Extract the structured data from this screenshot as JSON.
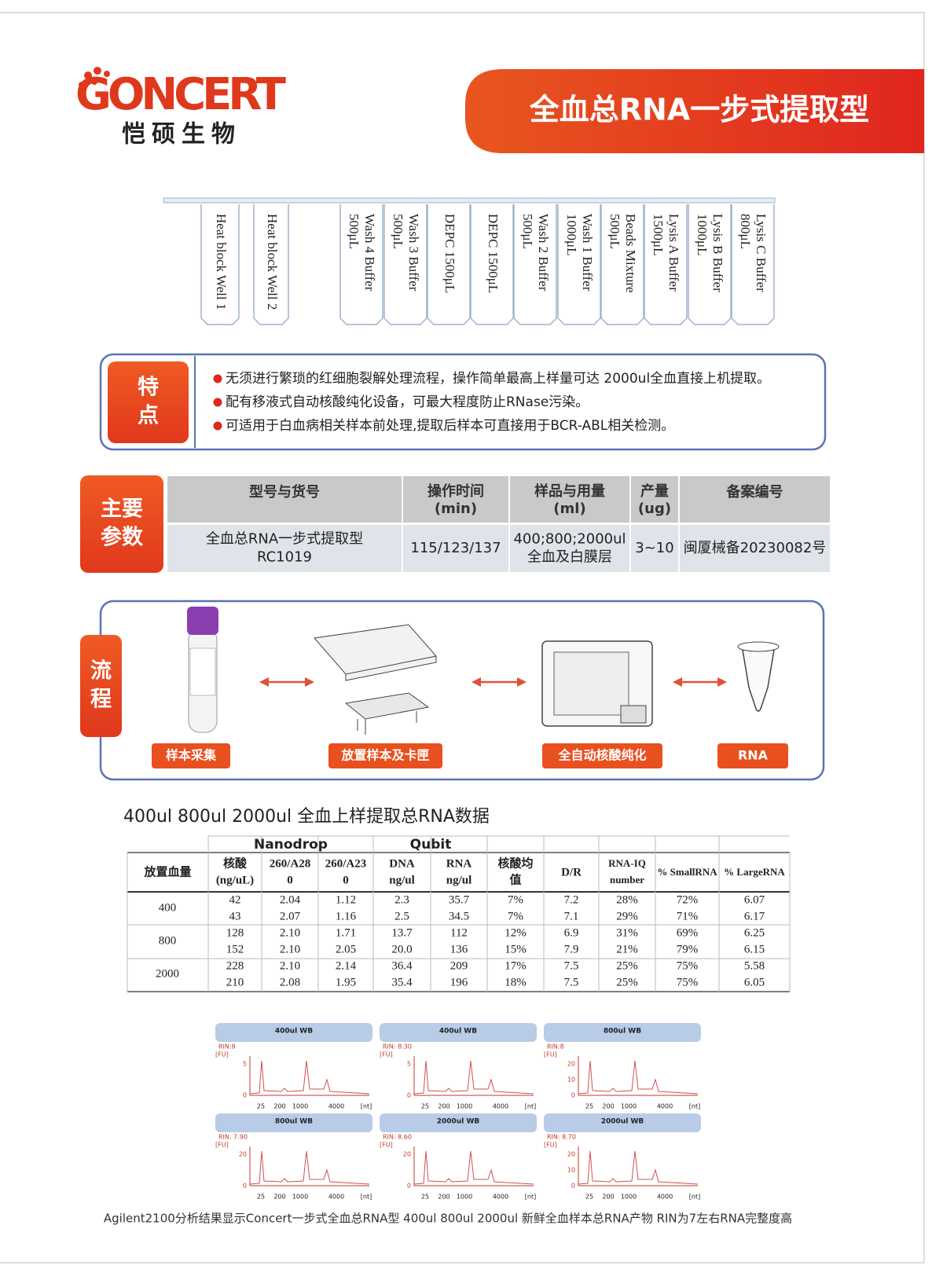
{
  "header": {
    "brand": "GONCERT",
    "brand_cn": "恺硕生物",
    "title": "全血总RNA一步式提取型"
  },
  "cartridge": {
    "wells": [
      [
        "Heat block Well 1"
      ],
      [
        "Heat block Well 2"
      ],
      [
        "Wash 4 Buffer",
        "500μL"
      ],
      [
        "Wash 3 Buffer",
        "500μL"
      ],
      [
        "DEPC 1500μL"
      ],
      [
        "DEPC 1500μL"
      ],
      [
        "Wash 2 Buffer",
        "500μL"
      ],
      [
        "Wash 1 Buffer",
        "1000μL"
      ],
      [
        "Beads Mixture",
        "500μL"
      ],
      [
        "Lysis A Buffer",
        "1500μL"
      ],
      [
        "Lysis B Buffer",
        "1000μL"
      ],
      [
        "Lysis C Buffer",
        "800μL"
      ]
    ]
  },
  "features": {
    "label": [
      "特",
      "点"
    ],
    "items": [
      "无须进行繁琐的红细胞裂解处理流程，操作简单最高上样量可达 2000ul全血直接上机提取。",
      "配有移液式自动核酸纯化设备，可最大程度防止RNase污染。",
      "可适用于白血病相关样本前处理,提取后样本可直接用于BCR-ABL相关检测。"
    ]
  },
  "parameters": {
    "label": [
      "主要",
      "参数"
    ],
    "headers": [
      [
        "型号与货号"
      ],
      [
        "操作时间",
        "(min)"
      ],
      [
        "样品与用量",
        "(ml)"
      ],
      [
        "产量",
        "(ug)"
      ],
      [
        "备案编号"
      ]
    ],
    "row": [
      [
        "全血总RNA一步式提取型",
        "RC1019"
      ],
      [
        "115/123/137"
      ],
      [
        "400;800;2000ul",
        "全血及白膜层"
      ],
      [
        "3~10"
      ],
      [
        "闽厦械备20230082号"
      ]
    ]
  },
  "workflow": {
    "label": [
      "流",
      "程"
    ],
    "steps": [
      "样本采集",
      "放置样本及卡匣",
      "全自动核酸纯化",
      "RNA"
    ]
  },
  "data_table": {
    "title": "400ul 800ul 2000ul 全血上样提取总RNA数据",
    "groups": [
      "Nanodrop",
      "Qubit"
    ],
    "headers": [
      [
        "放置血量"
      ],
      [
        "核酸",
        "(ng/uL)"
      ],
      [
        "260/A28",
        "0"
      ],
      [
        "260/A23",
        "0"
      ],
      [
        "DNA",
        "ng/ul"
      ],
      [
        "RNA",
        "ng/ul"
      ],
      [
        "核酸均",
        "值"
      ],
      [
        "D/R"
      ],
      [
        "RNA-IQ",
        "number"
      ],
      [
        "% SmallRNA"
      ],
      [
        "% LargeRNA"
      ]
    ],
    "volumes": [
      "400",
      "800",
      "2000"
    ],
    "rows": [
      [
        "42",
        "2.04",
        "1.12",
        "2.3",
        "35.7",
        "7%",
        "7.2",
        "28%",
        "72%",
        "6.07"
      ],
      [
        "43",
        "2.07",
        "1.16",
        "2.5",
        "34.5",
        "7%",
        "7.1",
        "29%",
        "71%",
        "6.17"
      ],
      [
        "128",
        "2.10",
        "1.71",
        "13.7",
        "112",
        "12%",
        "6.9",
        "31%",
        "69%",
        "6.25"
      ],
      [
        "152",
        "2.10",
        "2.05",
        "20.0",
        "136",
        "15%",
        "7.9",
        "21%",
        "79%",
        "6.15"
      ],
      [
        "228",
        "2.10",
        "2.14",
        "36.4",
        "209",
        "17%",
        "7.5",
        "25%",
        "75%",
        "5.58"
      ],
      [
        "210",
        "2.08",
        "1.95",
        "35.4",
        "196",
        "18%",
        "7.5",
        "25%",
        "75%",
        "6.05"
      ]
    ]
  },
  "electropherograms": {
    "y_unit": "[FU]",
    "x_unit": "[nt]",
    "xticks": [
      "25",
      "200",
      "1000",
      "4000"
    ],
    "panels": [
      {
        "title": "400ul WB",
        "rin": "RIN:8",
        "yticks": [
          "5",
          "0"
        ]
      },
      {
        "title": "400ul WB",
        "rin": "RIN: 8.30",
        "yticks": [
          "5",
          "0"
        ]
      },
      {
        "title": "800ul WB",
        "rin": "RIN:8",
        "yticks": [
          "20",
          "10",
          "0"
        ]
      },
      {
        "title": "800ul WB",
        "rin": "RIN: 7.90",
        "yticks": [
          "20",
          "0"
        ]
      },
      {
        "title": "2000ul WB",
        "rin": "RIN: 8.60",
        "yticks": [
          "20",
          "0"
        ]
      },
      {
        "title": "2000ul WB",
        "rin": "RIN: 8.70",
        "yticks": [
          "20",
          "10",
          "0"
        ]
      }
    ]
  },
  "caption": "Agilent2100分析结果显示Concert一步式全血总RNA型 400ul 800ul 2000ul 新鲜全血样本总RNA产物 RIN为7左右RNA完整度高"
}
